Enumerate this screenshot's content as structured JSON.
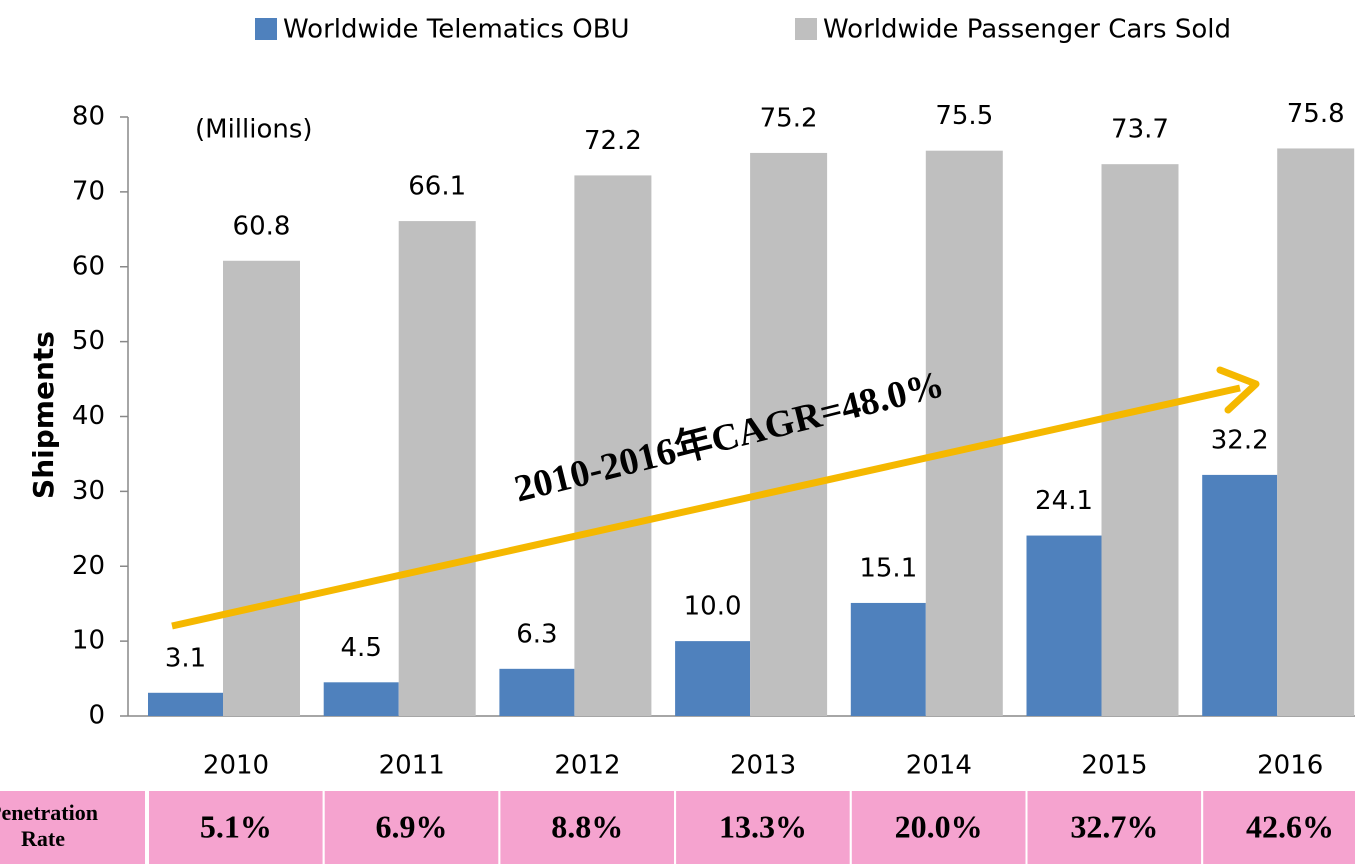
{
  "chart_data": {
    "type": "bar",
    "categories": [
      "2010",
      "2011",
      "2012",
      "2013",
      "2014",
      "2015",
      "2016"
    ],
    "series": [
      {
        "name": "Worldwide Telematics OBU",
        "color": "#4f81bd",
        "values": [
          3.1,
          4.5,
          6.3,
          10.0,
          15.1,
          24.1,
          32.2
        ],
        "value_labels": [
          "3.1",
          "4.5",
          "6.3",
          "10.0",
          "15.1",
          "24.1",
          "32.2"
        ]
      },
      {
        "name": "Worldwide Passenger Cars Sold",
        "color": "#bfbfbf",
        "values": [
          60.8,
          66.1,
          72.2,
          75.2,
          75.5,
          73.7,
          75.8
        ]
      }
    ],
    "ylim": [
      0,
      80
    ],
    "yticks": [
      0,
      10,
      20,
      30,
      40,
      50,
      60,
      70,
      80
    ],
    "y_label": "Shipments",
    "unit_note": "(Millions)",
    "annotation": "2010-2016年CAGR=48.0%",
    "legend": "top",
    "table": {
      "header": "Penetration Rate",
      "cells": [
        "5.1%",
        "6.9%",
        "8.8%",
        "13.3%",
        "20.0%",
        "32.7%",
        "42.6%"
      ]
    }
  }
}
